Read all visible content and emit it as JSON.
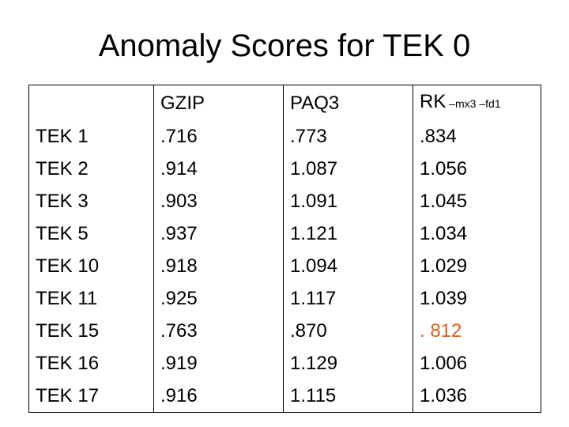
{
  "title": "Anomaly Scores for TEK 0",
  "table": {
    "header": {
      "corner": "",
      "col1": "GZIP",
      "col2": "PAQ3",
      "col3_main": "RK",
      "col3_sub": " –mx3 –fd1"
    },
    "rows": [
      {
        "label": "TEK 1",
        "gzip": ".716",
        "paq3": ".773",
        "rk": ".834"
      },
      {
        "label": "TEK 2",
        "gzip": ".914",
        "paq3": "1.087",
        "rk": "1.056"
      },
      {
        "label": "TEK 3",
        "gzip": ".903",
        "paq3": "1.091",
        "rk": "1.045"
      },
      {
        "label": "TEK 5",
        "gzip": ".937",
        "paq3": "1.121",
        "rk": "1.034"
      },
      {
        "label": "TEK 10",
        "gzip": ".918",
        "paq3": "1.094",
        "rk": "1.029"
      },
      {
        "label": "TEK 11",
        "gzip": ".925",
        "paq3": "1.117",
        "rk": "1.039"
      },
      {
        "label": "TEK 15",
        "gzip": ".763",
        "paq3": ".870",
        "rk": ". 812"
      },
      {
        "label": "TEK 16",
        "gzip": ".919",
        "paq3": "1.129",
        "rk": "1.006"
      },
      {
        "label": "TEK 17",
        "gzip": ".916",
        "paq3": "1.115",
        "rk": "1.036"
      }
    ],
    "highlight_color": "#e05c1a"
  }
}
